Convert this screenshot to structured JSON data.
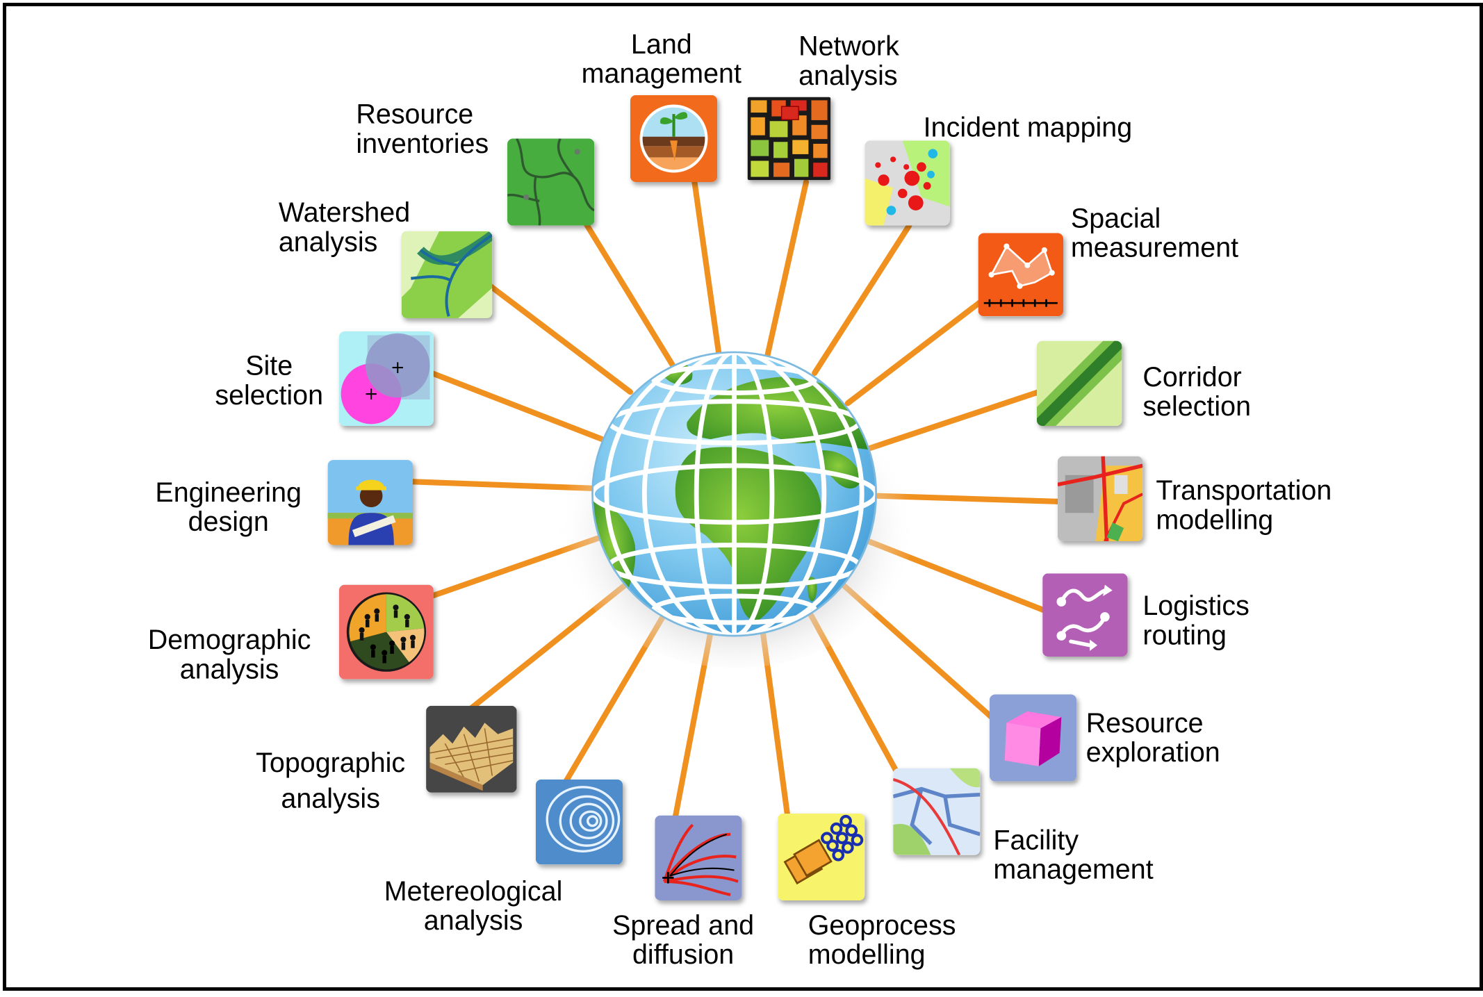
{
  "diagram": {
    "connector_color": "#f0901e",
    "center": "globe-icon",
    "nodes": [
      {
        "id": "land-management",
        "label": "Land\nmanagement",
        "icon": "plant-soil-icon"
      },
      {
        "id": "network-analysis",
        "label": "Network\nanalysis",
        "icon": "network-grid-icon"
      },
      {
        "id": "incident-mapping",
        "label": "Incident mapping",
        "icon": "incident-dots-icon"
      },
      {
        "id": "spacial-measurement",
        "label": "Spacial\nmeasurement",
        "icon": "measurement-polygon-icon"
      },
      {
        "id": "corridor-selection",
        "label": "Corridor\nselection",
        "icon": "corridor-band-icon"
      },
      {
        "id": "transportation-modelling",
        "label": "Transportation\nmodelling",
        "icon": "road-map-icon"
      },
      {
        "id": "logistics-routing",
        "label": "Logistics\nrouting",
        "icon": "route-arrows-icon"
      },
      {
        "id": "resource-exploration",
        "label": "Resource\nexploration",
        "icon": "cube-icon"
      },
      {
        "id": "facility-management",
        "label": "Facility\nmanagement",
        "icon": "facility-network-icon"
      },
      {
        "id": "geoprocess-modelling",
        "label": "Geoprocess\nmodelling",
        "icon": "geoprocess-chain-icon"
      },
      {
        "id": "spread-and-diffusion",
        "label": "Spread and\ndiffusion",
        "icon": "diffusion-lines-icon"
      },
      {
        "id": "metereological-analysis",
        "label": "Metereological\nanalysis",
        "icon": "isobar-rings-icon"
      },
      {
        "id": "topographic-analysis",
        "label": "Topographic\nanalysis",
        "icon": "terrain-icon"
      },
      {
        "id": "demographic-analysis",
        "label": "Demographic\nanalysis",
        "icon": "population-pie-icon"
      },
      {
        "id": "engineering-design",
        "label": "Engineering\ndesign",
        "icon": "engineer-icon"
      },
      {
        "id": "site-selection",
        "label": "Site\nselection",
        "icon": "overlap-circles-icon"
      },
      {
        "id": "watershed-analysis",
        "label": "Watershed\nanalysis",
        "icon": "river-icon"
      },
      {
        "id": "resource-inventories",
        "label": "Resource\ninventories",
        "icon": "parcels-icon"
      }
    ]
  }
}
